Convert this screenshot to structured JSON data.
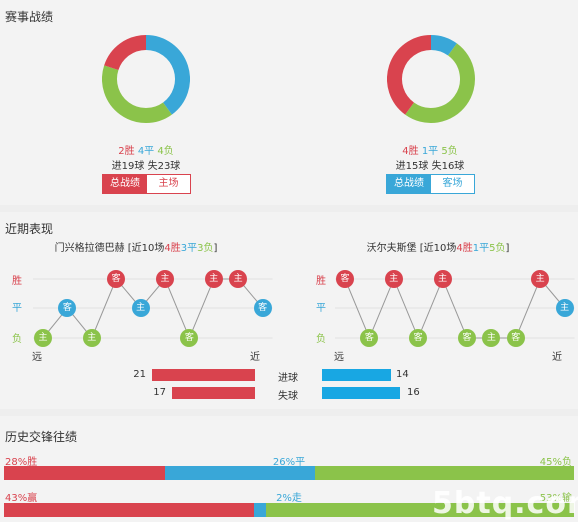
{
  "section1": {
    "title": "赛事战绩",
    "left": {
      "win": 2,
      "draw": 4,
      "loss": 4,
      "win_text": "2胜",
      "draw_text": "4平",
      "loss_text": "4负",
      "goals_text": "进19球 失23球",
      "tabs": [
        "总战绩",
        "主场"
      ]
    },
    "right": {
      "win": 4,
      "draw": 1,
      "loss": 5,
      "win_text": "4胜",
      "draw_text": "1平",
      "loss_text": "5负",
      "goals_text": "进15球 失16球",
      "tabs": [
        "总战绩",
        "客场"
      ]
    }
  },
  "section2": {
    "title": "近期表现",
    "left": {
      "team": "门兴格拉德巴赫",
      "record_prefix": "[近10场",
      "w": "4胜",
      "d": "3平",
      "l": "3负",
      "record_suffix": "]",
      "seq": [
        {
          "r": "l",
          "v": "主"
        },
        {
          "r": "d",
          "v": "客"
        },
        {
          "r": "l",
          "v": "主"
        },
        {
          "r": "w",
          "v": "客"
        },
        {
          "r": "d",
          "v": "主"
        },
        {
          "r": "w",
          "v": "主"
        },
        {
          "r": "l",
          "v": "客"
        },
        {
          "r": "w",
          "v": "主"
        },
        {
          "r": "w",
          "v": "主"
        },
        {
          "r": "d",
          "v": "客"
        }
      ]
    },
    "right": {
      "team": "沃尔夫斯堡",
      "record_prefix": "[近10场",
      "w": "4胜",
      "d": "1平",
      "l": "5负",
      "record_suffix": "]",
      "seq": [
        {
          "r": "w",
          "v": "客"
        },
        {
          "r": "l",
          "v": "客"
        },
        {
          "r": "w",
          "v": "主"
        },
        {
          "r": "l",
          "v": "客"
        },
        {
          "r": "w",
          "v": "主"
        },
        {
          "r": "l",
          "v": "客"
        },
        {
          "r": "l",
          "v": "主"
        },
        {
          "r": "l",
          "v": "客"
        },
        {
          "r": "w",
          "v": "主"
        },
        {
          "r": "d",
          "v": "主"
        }
      ]
    },
    "row_labels": {
      "w": "胜",
      "d": "平",
      "l": "负"
    },
    "far": "远",
    "near": "近",
    "stats": {
      "scored_label": "进球",
      "conceded_label": "失球",
      "left_scored": 21,
      "left_conceded": 17,
      "right_scored": 14,
      "right_conceded": 16
    }
  },
  "section3": {
    "title": "历史交锋往绩",
    "row1": {
      "win_pct": 28,
      "draw_pct": 26,
      "loss_pct": 45,
      "win_text": "28%胜",
      "draw_text": "26%平",
      "loss_text": "45%负"
    },
    "row2": {
      "win_pct": 43,
      "draw_pct": 2,
      "loss_pct": 53,
      "win_text": "43%赢",
      "draw_text": "2%走",
      "loss_text": "53%输"
    }
  },
  "watermark": "5btq.com",
  "colors": {
    "win": "#d9434e",
    "draw": "#39a7d8",
    "loss": "#8bc34a"
  }
}
